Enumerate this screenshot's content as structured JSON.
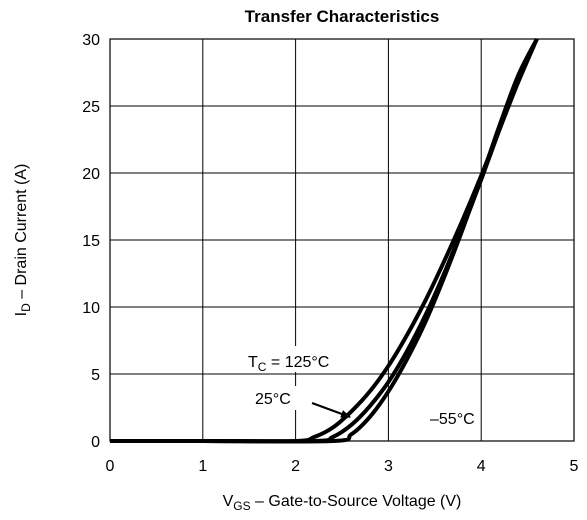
{
  "chart_data": {
    "type": "line",
    "title": "Transfer Characteristics",
    "xlabel": {
      "main": "V",
      "sub": "GS",
      "rest": "  –  Gate-to-Source Voltage (V)"
    },
    "ylabel": {
      "main": "I",
      "sub": "D",
      "rest": "  –  Drain Current (A)"
    },
    "xlim": [
      0,
      5
    ],
    "ylim": [
      0,
      30
    ],
    "xticks": [
      0,
      1,
      2,
      3,
      4,
      5
    ],
    "yticks": [
      0,
      5,
      10,
      15,
      20,
      25,
      30
    ],
    "grid": true,
    "series": [
      {
        "name": "T_C = 125°C",
        "x": [
          0,
          1,
          2.0,
          2.2,
          2.4,
          2.6,
          2.8,
          3.0,
          3.2,
          3.4,
          3.6,
          3.8,
          4.0,
          4.2,
          4.4,
          4.6
        ],
        "y": [
          0,
          0,
          0,
          0.3,
          1.0,
          2.2,
          3.7,
          5.6,
          7.9,
          10.5,
          13.4,
          16.5,
          19.8,
          23.3,
          26.8,
          30
        ]
      },
      {
        "name": "25°C",
        "x": [
          0,
          1,
          2.2,
          2.4,
          2.6,
          2.8,
          3.0,
          3.2,
          3.4,
          3.6,
          3.8,
          4.0,
          4.2,
          4.4,
          4.6
        ],
        "y": [
          0,
          0,
          0,
          0.3,
          1.2,
          2.6,
          4.4,
          6.7,
          9.4,
          12.5,
          15.9,
          19.5,
          23.3,
          27.2,
          30
        ]
      },
      {
        "name": "–55°C",
        "x": [
          0,
          1,
          2.4,
          2.6,
          2.8,
          3.0,
          3.2,
          3.4,
          3.6,
          3.8,
          4.0,
          4.2,
          4.4,
          4.6
        ],
        "y": [
          0,
          0,
          0,
          0.5,
          1.8,
          3.7,
          6.1,
          8.9,
          12.2,
          15.8,
          19.6,
          23.6,
          27.3,
          30
        ]
      }
    ],
    "annotations": {
      "tc_main": "T",
      "tc_sub": "C",
      "tc_rest": " = 125°C",
      "a25": "25°C",
      "am55": "–55°C"
    }
  }
}
